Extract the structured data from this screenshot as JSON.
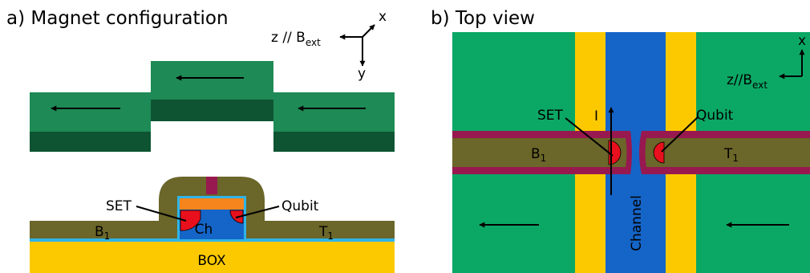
{
  "panel_a": {
    "title": "a)  Magnet configuration",
    "axes": {
      "x": "x",
      "y": "y",
      "z_prefix": "z // B",
      "z_sub": "ext"
    },
    "labels": {
      "set": "SET",
      "qubit": "Qubit",
      "ch": "Ch",
      "box": "BOX",
      "b": "B",
      "b_sub": "1",
      "t": "T",
      "t_sub": "1"
    }
  },
  "panel_b": {
    "title": "b)  Top view",
    "axes": {
      "x": "x",
      "z_prefix": "z//B",
      "z_sub": "ext"
    },
    "labels": {
      "set": "SET",
      "current": "I",
      "qubit": "Qubit",
      "b": "B",
      "b_sub": "1",
      "t": "T",
      "t_sub": "1",
      "channel": "Channel"
    }
  },
  "colors": {
    "magnet_light": "#1e8a55",
    "magnet_dark": "#0e5433",
    "top_view_bg": "#0ba865",
    "gate": "#6b6629",
    "gate_border": "#97194f",
    "box": "#fcc900",
    "channel": "#1565c8",
    "orange": "#f5851c",
    "dot": "#e8101c",
    "dielectric": "#2fb4e8"
  }
}
